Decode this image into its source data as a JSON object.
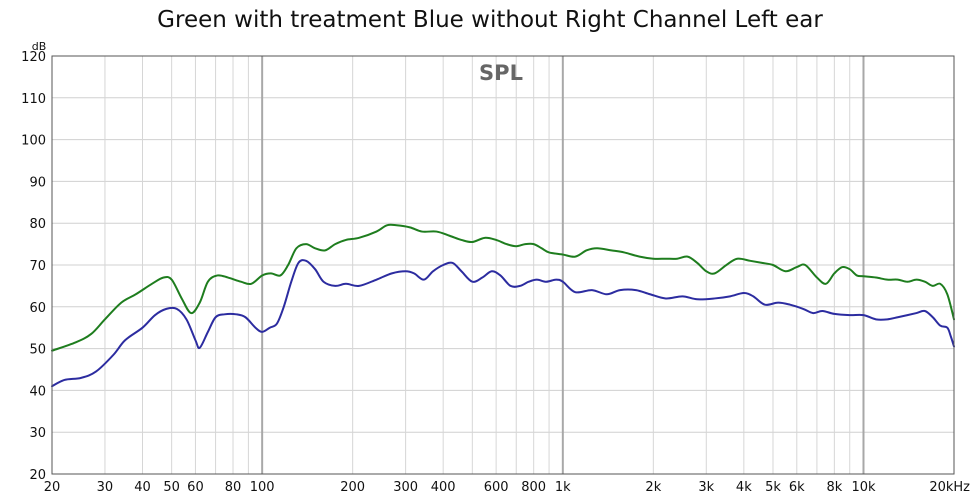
{
  "chart_data": {
    "type": "line",
    "title": "Green with treatment Blue without Right Channel Left ear",
    "inner_title": "SPL",
    "ylabel": "dB",
    "x_scale": "log",
    "xlim": [
      20,
      20000
    ],
    "ylim": [
      20,
      120
    ],
    "grid": true,
    "y_ticks": [
      "20",
      "30",
      "40",
      "50",
      "60",
      "70",
      "80",
      "90",
      "100",
      "110",
      "120"
    ],
    "x_ticks": [
      {
        "value": 20,
        "label": "20"
      },
      {
        "value": 30,
        "label": "30"
      },
      {
        "value": 40,
        "label": "40"
      },
      {
        "value": 50,
        "label": "50"
      },
      {
        "value": 60,
        "label": "60"
      },
      {
        "value": 80,
        "label": "80"
      },
      {
        "value": 100,
        "label": "100"
      },
      {
        "value": 200,
        "label": "200"
      },
      {
        "value": 300,
        "label": "300"
      },
      {
        "value": 400,
        "label": "400"
      },
      {
        "value": 600,
        "label": "600"
      },
      {
        "value": 800,
        "label": "800"
      },
      {
        "value": 1000,
        "label": "1k"
      },
      {
        "value": 2000,
        "label": "2k"
      },
      {
        "value": 3000,
        "label": "3k"
      },
      {
        "value": 4000,
        "label": "4k"
      },
      {
        "value": 5000,
        "label": "5k"
      },
      {
        "value": 6000,
        "label": "6k"
      },
      {
        "value": 8000,
        "label": "8k"
      },
      {
        "value": 10000,
        "label": "10k"
      },
      {
        "value": 20000,
        "label": "20kHz"
      }
    ],
    "series": [
      {
        "color": "#1e7d1e",
        "points": [
          [
            20,
            49.5
          ],
          [
            24,
            51.5
          ],
          [
            27,
            53.5
          ],
          [
            30,
            57
          ],
          [
            34,
            61
          ],
          [
            38,
            63
          ],
          [
            43,
            65.5
          ],
          [
            47,
            67
          ],
          [
            50,
            66.5
          ],
          [
            54,
            62
          ],
          [
            58,
            58.5
          ],
          [
            62,
            61
          ],
          [
            66,
            66
          ],
          [
            71,
            67.5
          ],
          [
            77,
            67
          ],
          [
            85,
            66
          ],
          [
            92,
            65.5
          ],
          [
            100,
            67.5
          ],
          [
            107,
            68
          ],
          [
            115,
            67.5
          ],
          [
            122,
            70
          ],
          [
            130,
            74
          ],
          [
            140,
            75
          ],
          [
            150,
            74
          ],
          [
            162,
            73.5
          ],
          [
            175,
            75
          ],
          [
            190,
            76
          ],
          [
            210,
            76.5
          ],
          [
            240,
            78
          ],
          [
            260,
            79.5
          ],
          [
            280,
            79.5
          ],
          [
            310,
            79
          ],
          [
            340,
            78
          ],
          [
            380,
            78
          ],
          [
            420,
            77
          ],
          [
            460,
            76
          ],
          [
            500,
            75.5
          ],
          [
            550,
            76.5
          ],
          [
            600,
            76
          ],
          [
            650,
            75
          ],
          [
            700,
            74.5
          ],
          [
            750,
            75
          ],
          [
            800,
            75
          ],
          [
            850,
            74
          ],
          [
            900,
            73
          ],
          [
            1000,
            72.5
          ],
          [
            1100,
            72
          ],
          [
            1200,
            73.5
          ],
          [
            1300,
            74
          ],
          [
            1450,
            73.5
          ],
          [
            1600,
            73
          ],
          [
            1800,
            72
          ],
          [
            2000,
            71.5
          ],
          [
            2200,
            71.5
          ],
          [
            2400,
            71.5
          ],
          [
            2600,
            72
          ],
          [
            2800,
            70.5
          ],
          [
            3000,
            68.5
          ],
          [
            3200,
            68
          ],
          [
            3500,
            70
          ],
          [
            3800,
            71.5
          ],
          [
            4200,
            71
          ],
          [
            4600,
            70.5
          ],
          [
            5000,
            70
          ],
          [
            5500,
            68.5
          ],
          [
            6000,
            69.5
          ],
          [
            6400,
            70
          ],
          [
            7000,
            67
          ],
          [
            7500,
            65.5
          ],
          [
            8000,
            68
          ],
          [
            8500,
            69.5
          ],
          [
            9000,
            69
          ],
          [
            9500,
            67.5
          ],
          [
            10000,
            67.3
          ],
          [
            11000,
            67
          ],
          [
            12000,
            66.5
          ],
          [
            13000,
            66.5
          ],
          [
            14000,
            66
          ],
          [
            15000,
            66.5
          ],
          [
            16000,
            66
          ],
          [
            17000,
            65
          ],
          [
            18000,
            65.5
          ],
          [
            19000,
            63
          ],
          [
            20000,
            57
          ]
        ]
      },
      {
        "color": "#2c2ca0",
        "points": [
          [
            20,
            41
          ],
          [
            22,
            42.5
          ],
          [
            25,
            43
          ],
          [
            28,
            44.5
          ],
          [
            32,
            48.5
          ],
          [
            35,
            52
          ],
          [
            40,
            55
          ],
          [
            44,
            58
          ],
          [
            48,
            59.5
          ],
          [
            52,
            59.5
          ],
          [
            56,
            57
          ],
          [
            60,
            52
          ],
          [
            62,
            50.2
          ],
          [
            66,
            54
          ],
          [
            70,
            57.5
          ],
          [
            75,
            58.2
          ],
          [
            82,
            58.2
          ],
          [
            88,
            57.5
          ],
          [
            95,
            55
          ],
          [
            100,
            54
          ],
          [
            106,
            55
          ],
          [
            112,
            56
          ],
          [
            118,
            60
          ],
          [
            125,
            66
          ],
          [
            132,
            70.5
          ],
          [
            140,
            71
          ],
          [
            150,
            69
          ],
          [
            160,
            66
          ],
          [
            175,
            65
          ],
          [
            190,
            65.5
          ],
          [
            210,
            65
          ],
          [
            240,
            66.5
          ],
          [
            270,
            68
          ],
          [
            300,
            68.5
          ],
          [
            320,
            68
          ],
          [
            345,
            66.5
          ],
          [
            370,
            68.5
          ],
          [
            400,
            70
          ],
          [
            430,
            70.5
          ],
          [
            460,
            68.5
          ],
          [
            500,
            66
          ],
          [
            540,
            67
          ],
          [
            580,
            68.5
          ],
          [
            620,
            67.5
          ],
          [
            670,
            65
          ],
          [
            720,
            65
          ],
          [
            770,
            66
          ],
          [
            820,
            66.5
          ],
          [
            880,
            66
          ],
          [
            950,
            66.5
          ],
          [
            1000,
            66
          ],
          [
            1100,
            63.5
          ],
          [
            1250,
            64
          ],
          [
            1400,
            63
          ],
          [
            1550,
            64
          ],
          [
            1750,
            64
          ],
          [
            1950,
            63
          ],
          [
            2200,
            62
          ],
          [
            2500,
            62.5
          ],
          [
            2800,
            61.8
          ],
          [
            3200,
            62
          ],
          [
            3600,
            62.5
          ],
          [
            4000,
            63.3
          ],
          [
            4300,
            62.5
          ],
          [
            4700,
            60.5
          ],
          [
            5200,
            61
          ],
          [
            5700,
            60.5
          ],
          [
            6300,
            59.5
          ],
          [
            6800,
            58.5
          ],
          [
            7300,
            59
          ],
          [
            8000,
            58.3
          ],
          [
            9000,
            58
          ],
          [
            10000,
            58
          ],
          [
            11000,
            57
          ],
          [
            12000,
            57
          ],
          [
            13000,
            57.5
          ],
          [
            14000,
            58
          ],
          [
            15000,
            58.5
          ],
          [
            16000,
            59
          ],
          [
            17000,
            57.5
          ],
          [
            18000,
            55.5
          ],
          [
            19000,
            55
          ],
          [
            19500,
            53
          ],
          [
            20000,
            50.5
          ]
        ]
      }
    ]
  }
}
